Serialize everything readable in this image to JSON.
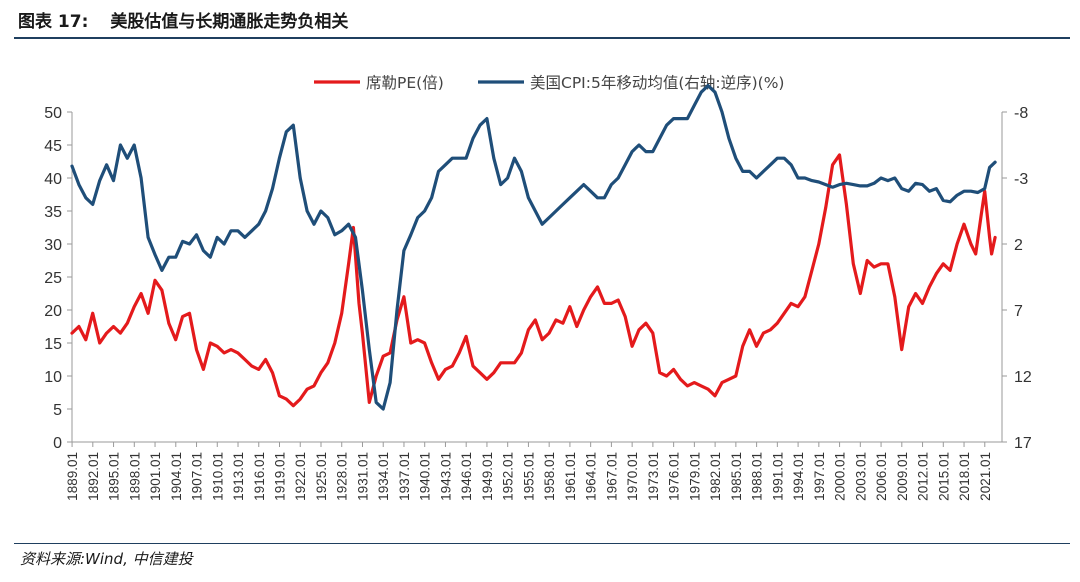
{
  "header": {
    "figure_number": "图表 17:",
    "title": "美股估值与长期通胀走势负相关"
  },
  "source": "资料来源:Wind, 中信建投",
  "chart_data": {
    "type": "line",
    "title": "",
    "legend_position": "top-center",
    "grid": false,
    "x_tick_labels": [
      "1889.01",
      "1892.01",
      "1895.01",
      "1898.01",
      "1901.01",
      "1904.01",
      "1907.01",
      "1910.01",
      "1913.01",
      "1916.01",
      "1919.01",
      "1922.01",
      "1925.01",
      "1928.01",
      "1931.01",
      "1934.01",
      "1937.01",
      "1940.01",
      "1943.01",
      "1946.01",
      "1949.01",
      "1952.01",
      "1955.01",
      "1958.01",
      "1961.01",
      "1964.01",
      "1967.01",
      "1970.01",
      "1973.01",
      "1976.01",
      "1979.01",
      "1982.01",
      "1985.01",
      "1988.01",
      "1991.01",
      "1994.01",
      "1997.01",
      "2000.01",
      "2003.01",
      "2006.01",
      "2009.01",
      "2012.01",
      "2015.01",
      "2018.01",
      "2021.01"
    ],
    "x_range": [
      1889,
      2023.5
    ],
    "y_left": {
      "range": [
        0,
        50
      ],
      "ticks": [
        "0",
        "5",
        "10",
        "15",
        "20",
        "25",
        "30",
        "35",
        "40",
        "45",
        "50"
      ]
    },
    "y_right": {
      "range": [
        -8,
        17
      ],
      "inverted": true,
      "ticks": [
        "-8",
        "-3",
        "2",
        "7",
        "12",
        "17"
      ]
    },
    "series": [
      {
        "name": "席勒PE(倍)",
        "axis": "left",
        "color": "#e41a1c",
        "points": [
          [
            1889.0,
            16.5
          ],
          [
            1890.0,
            17.5
          ],
          [
            1891.0,
            15.5
          ],
          [
            1892.0,
            19.5
          ],
          [
            1893.0,
            15.0
          ],
          [
            1894.0,
            16.5
          ],
          [
            1895.0,
            17.5
          ],
          [
            1896.0,
            16.5
          ],
          [
            1897.0,
            18.0
          ],
          [
            1898.0,
            20.5
          ],
          [
            1899.0,
            22.5
          ],
          [
            1900.0,
            19.5
          ],
          [
            1901.0,
            24.5
          ],
          [
            1902.0,
            23.0
          ],
          [
            1903.0,
            18.0
          ],
          [
            1904.0,
            15.5
          ],
          [
            1905.0,
            19.0
          ],
          [
            1906.0,
            19.5
          ],
          [
            1907.0,
            14.0
          ],
          [
            1908.0,
            11.0
          ],
          [
            1909.0,
            15.0
          ],
          [
            1910.0,
            14.5
          ],
          [
            1911.0,
            13.5
          ],
          [
            1912.0,
            14.0
          ],
          [
            1913.0,
            13.5
          ],
          [
            1914.0,
            12.5
          ],
          [
            1915.0,
            11.5
          ],
          [
            1916.0,
            11.0
          ],
          [
            1917.0,
            12.5
          ],
          [
            1918.0,
            10.5
          ],
          [
            1919.0,
            7.0
          ],
          [
            1920.0,
            6.5
          ],
          [
            1921.0,
            5.5
          ],
          [
            1922.0,
            6.5
          ],
          [
            1923.0,
            8.0
          ],
          [
            1924.0,
            8.5
          ],
          [
            1925.0,
            10.5
          ],
          [
            1926.0,
            12.0
          ],
          [
            1927.0,
            15.0
          ],
          [
            1928.0,
            19.5
          ],
          [
            1929.0,
            27.0
          ],
          [
            1929.7,
            32.5
          ],
          [
            1930.5,
            21.0
          ],
          [
            1931.0,
            16.5
          ],
          [
            1932.0,
            6.0
          ],
          [
            1933.0,
            10.0
          ],
          [
            1934.0,
            13.0
          ],
          [
            1935.0,
            13.5
          ],
          [
            1936.0,
            18.5
          ],
          [
            1937.0,
            22.0
          ],
          [
            1938.0,
            15.0
          ],
          [
            1939.0,
            15.5
          ],
          [
            1940.0,
            15.0
          ],
          [
            1941.0,
            12.0
          ],
          [
            1942.0,
            9.5
          ],
          [
            1943.0,
            11.0
          ],
          [
            1944.0,
            11.5
          ],
          [
            1945.0,
            13.5
          ],
          [
            1946.0,
            16.0
          ],
          [
            1947.0,
            11.5
          ],
          [
            1948.0,
            10.5
          ],
          [
            1949.0,
            9.5
          ],
          [
            1950.0,
            10.5
          ],
          [
            1951.0,
            12.0
          ],
          [
            1952.0,
            12.0
          ],
          [
            1953.0,
            12.0
          ],
          [
            1954.0,
            13.5
          ],
          [
            1955.0,
            17.0
          ],
          [
            1956.0,
            18.5
          ],
          [
            1957.0,
            15.5
          ],
          [
            1958.0,
            16.5
          ],
          [
            1959.0,
            18.5
          ],
          [
            1960.0,
            18.0
          ],
          [
            1961.0,
            20.5
          ],
          [
            1962.0,
            17.5
          ],
          [
            1963.0,
            20.0
          ],
          [
            1964.0,
            22.0
          ],
          [
            1965.0,
            23.5
          ],
          [
            1966.0,
            21.0
          ],
          [
            1967.0,
            21.0
          ],
          [
            1968.0,
            21.5
          ],
          [
            1969.0,
            19.0
          ],
          [
            1970.0,
            14.5
          ],
          [
            1971.0,
            17.0
          ],
          [
            1972.0,
            18.0
          ],
          [
            1973.0,
            16.5
          ],
          [
            1974.0,
            10.5
          ],
          [
            1975.0,
            10.0
          ],
          [
            1976.0,
            11.0
          ],
          [
            1977.0,
            9.5
          ],
          [
            1978.0,
            8.5
          ],
          [
            1979.0,
            9.0
          ],
          [
            1980.0,
            8.5
          ],
          [
            1981.0,
            8.0
          ],
          [
            1982.0,
            7.0
          ],
          [
            1983.0,
            9.0
          ],
          [
            1984.0,
            9.5
          ],
          [
            1985.0,
            10.0
          ],
          [
            1986.0,
            14.5
          ],
          [
            1987.0,
            17.0
          ],
          [
            1988.0,
            14.5
          ],
          [
            1989.0,
            16.5
          ],
          [
            1990.0,
            17.0
          ],
          [
            1991.0,
            18.0
          ],
          [
            1992.0,
            19.5
          ],
          [
            1993.0,
            21.0
          ],
          [
            1994.0,
            20.5
          ],
          [
            1995.0,
            22.0
          ],
          [
            1996.0,
            26.0
          ],
          [
            1997.0,
            30.0
          ],
          [
            1998.0,
            35.5
          ],
          [
            1999.0,
            42.0
          ],
          [
            2000.0,
            43.5
          ],
          [
            2001.0,
            36.0
          ],
          [
            2002.0,
            27.0
          ],
          [
            2003.0,
            22.5
          ],
          [
            2004.0,
            27.5
          ],
          [
            2005.0,
            26.5
          ],
          [
            2006.0,
            27.0
          ],
          [
            2007.0,
            27.0
          ],
          [
            2008.0,
            22.0
          ],
          [
            2009.0,
            14.0
          ],
          [
            2010.0,
            20.5
          ],
          [
            2011.0,
            22.5
          ],
          [
            2012.0,
            21.0
          ],
          [
            2013.0,
            23.5
          ],
          [
            2014.0,
            25.5
          ],
          [
            2015.0,
            27.0
          ],
          [
            2016.0,
            26.0
          ],
          [
            2017.0,
            30.0
          ],
          [
            2018.0,
            33.0
          ],
          [
            2019.0,
            30.0
          ],
          [
            2019.7,
            28.5
          ],
          [
            2020.5,
            34.5
          ],
          [
            2021.0,
            38.0
          ],
          [
            2021.7,
            31.0
          ],
          [
            2022.0,
            28.5
          ],
          [
            2022.5,
            31.0
          ]
        ]
      },
      {
        "name": "美国CPI:5年移动均值(右轴:逆序)(%)",
        "axis": "right",
        "color": "#1f4e79",
        "points": [
          [
            1889.0,
            -3.9
          ],
          [
            1890.0,
            -2.5
          ],
          [
            1891.0,
            -1.5
          ],
          [
            1892.0,
            -1.0
          ],
          [
            1893.0,
            -2.8
          ],
          [
            1894.0,
            -4.0
          ],
          [
            1895.0,
            -2.8
          ],
          [
            1896.0,
            -5.5
          ],
          [
            1897.0,
            -4.5
          ],
          [
            1898.0,
            -5.5
          ],
          [
            1899.0,
            -3.0
          ],
          [
            1900.0,
            1.5
          ],
          [
            1901.0,
            2.8
          ],
          [
            1902.0,
            4.0
          ],
          [
            1903.0,
            3.0
          ],
          [
            1904.0,
            3.0
          ],
          [
            1905.0,
            1.8
          ],
          [
            1906.0,
            2.0
          ],
          [
            1907.0,
            1.3
          ],
          [
            1908.0,
            2.5
          ],
          [
            1909.0,
            3.0
          ],
          [
            1910.0,
            1.5
          ],
          [
            1911.0,
            2.0
          ],
          [
            1912.0,
            1.0
          ],
          [
            1913.0,
            1.0
          ],
          [
            1914.0,
            1.5
          ],
          [
            1915.0,
            1.0
          ],
          [
            1916.0,
            0.5
          ],
          [
            1917.0,
            -0.5
          ],
          [
            1918.0,
            -2.2
          ],
          [
            1919.0,
            -4.5
          ],
          [
            1920.0,
            -6.5
          ],
          [
            1921.0,
            -7.0
          ],
          [
            1922.0,
            -3.0
          ],
          [
            1923.0,
            -0.5
          ],
          [
            1924.0,
            0.5
          ],
          [
            1925.0,
            -0.5
          ],
          [
            1926.0,
            0.0
          ],
          [
            1927.0,
            1.3
          ],
          [
            1928.0,
            1.0
          ],
          [
            1929.0,
            0.5
          ],
          [
            1930.0,
            1.5
          ],
          [
            1931.0,
            5.5
          ],
          [
            1932.0,
            10.0
          ],
          [
            1933.0,
            14.0
          ],
          [
            1934.0,
            14.5
          ],
          [
            1935.0,
            12.5
          ],
          [
            1936.0,
            7.0
          ],
          [
            1937.0,
            2.5
          ],
          [
            1938.0,
            1.3
          ],
          [
            1939.0,
            0.0
          ],
          [
            1940.0,
            -0.5
          ],
          [
            1941.0,
            -1.5
          ],
          [
            1942.0,
            -3.5
          ],
          [
            1943.0,
            -4.0
          ],
          [
            1944.0,
            -4.5
          ],
          [
            1945.0,
            -4.5
          ],
          [
            1946.0,
            -4.5
          ],
          [
            1947.0,
            -6.0
          ],
          [
            1948.0,
            -7.0
          ],
          [
            1949.0,
            -7.5
          ],
          [
            1950.0,
            -4.5
          ],
          [
            1951.0,
            -2.5
          ],
          [
            1952.0,
            -3.0
          ],
          [
            1953.0,
            -4.5
          ],
          [
            1954.0,
            -3.5
          ],
          [
            1955.0,
            -1.5
          ],
          [
            1956.0,
            -0.5
          ],
          [
            1957.0,
            0.5
          ],
          [
            1958.0,
            0.0
          ],
          [
            1959.0,
            -0.5
          ],
          [
            1960.0,
            -1.0
          ],
          [
            1961.0,
            -1.5
          ],
          [
            1962.0,
            -2.0
          ],
          [
            1963.0,
            -2.5
          ],
          [
            1964.0,
            -2.0
          ],
          [
            1965.0,
            -1.5
          ],
          [
            1966.0,
            -1.5
          ],
          [
            1967.0,
            -2.5
          ],
          [
            1968.0,
            -3.0
          ],
          [
            1969.0,
            -4.0
          ],
          [
            1970.0,
            -5.0
          ],
          [
            1971.0,
            -5.5
          ],
          [
            1972.0,
            -5.0
          ],
          [
            1973.0,
            -5.0
          ],
          [
            1974.0,
            -6.0
          ],
          [
            1975.0,
            -7.0
          ],
          [
            1976.0,
            -7.5
          ],
          [
            1977.0,
            -7.5
          ],
          [
            1978.0,
            -7.5
          ],
          [
            1979.0,
            -8.5
          ],
          [
            1980.0,
            -9.5
          ],
          [
            1981.0,
            -10.0
          ],
          [
            1982.0,
            -9.5
          ],
          [
            1983.0,
            -8.0
          ],
          [
            1984.0,
            -6.0
          ],
          [
            1985.0,
            -4.5
          ],
          [
            1986.0,
            -3.5
          ],
          [
            1987.0,
            -3.5
          ],
          [
            1988.0,
            -3.0
          ],
          [
            1989.0,
            -3.5
          ],
          [
            1990.0,
            -4.0
          ],
          [
            1991.0,
            -4.5
          ],
          [
            1992.0,
            -4.5
          ],
          [
            1993.0,
            -4.0
          ],
          [
            1994.0,
            -3.0
          ],
          [
            1995.0,
            -3.0
          ],
          [
            1996.0,
            -2.8
          ],
          [
            1997.0,
            -2.7
          ],
          [
            1998.0,
            -2.5
          ],
          [
            1999.0,
            -2.3
          ],
          [
            2000.0,
            -2.5
          ],
          [
            2001.0,
            -2.6
          ],
          [
            2002.0,
            -2.5
          ],
          [
            2003.0,
            -2.4
          ],
          [
            2004.0,
            -2.4
          ],
          [
            2005.0,
            -2.6
          ],
          [
            2006.0,
            -3.0
          ],
          [
            2007.0,
            -2.8
          ],
          [
            2008.0,
            -3.0
          ],
          [
            2009.0,
            -2.2
          ],
          [
            2010.0,
            -2.0
          ],
          [
            2011.0,
            -2.6
          ],
          [
            2012.0,
            -2.5
          ],
          [
            2013.0,
            -2.0
          ],
          [
            2014.0,
            -2.2
          ],
          [
            2015.0,
            -1.3
          ],
          [
            2016.0,
            -1.2
          ],
          [
            2017.0,
            -1.7
          ],
          [
            2018.0,
            -2.0
          ],
          [
            2019.0,
            -2.0
          ],
          [
            2020.0,
            -1.9
          ],
          [
            2021.0,
            -2.2
          ],
          [
            2021.7,
            -3.8
          ],
          [
            2022.5,
            -4.2
          ]
        ]
      }
    ]
  }
}
